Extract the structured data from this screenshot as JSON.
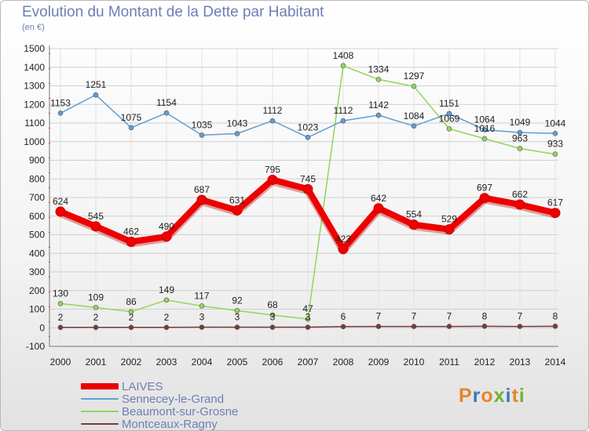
{
  "chart_data": {
    "type": "line",
    "title": "Evolution du Montant de la Dette par Habitant",
    "ylabel": "(en €)",
    "xlabel": "",
    "x": [
      "2000",
      "2001",
      "2002",
      "2003",
      "2004",
      "2005",
      "2006",
      "2007",
      "2008",
      "2009",
      "2010",
      "2011",
      "2012",
      "2013",
      "2014"
    ],
    "ylim": [
      -100,
      1500
    ],
    "yticks": [
      -100,
      0,
      100,
      200,
      300,
      400,
      500,
      600,
      700,
      800,
      900,
      1000,
      1100,
      1200,
      1300,
      1400,
      1500
    ],
    "grid": true,
    "legend_position": "bottom-left",
    "series": [
      {
        "name": "LAIVES",
        "color": "#ee0000",
        "values": [
          624,
          545,
          462,
          490,
          687,
          631,
          795,
          745,
          423,
          642,
          554,
          529,
          697,
          662,
          617
        ]
      },
      {
        "name": "Sennecey-le-Grand",
        "color": "#5e9fd5",
        "values": [
          1153,
          1251,
          1075,
          1154,
          1035,
          1043,
          1112,
          1023,
          1112,
          1142,
          1084,
          1151,
          1064,
          1049,
          1044
        ]
      },
      {
        "name": "Beaumont-sur-Grosne",
        "color": "#8fd65c",
        "values": [
          130,
          109,
          86,
          149,
          117,
          92,
          68,
          47,
          1408,
          1334,
          1297,
          1069,
          1016,
          963,
          933
        ]
      },
      {
        "name": "Montceaux-Ragny",
        "color": "#7a3a3a",
        "values": [
          2,
          2,
          2,
          2,
          3,
          3,
          3,
          3,
          6,
          7,
          7,
          7,
          8,
          7,
          8
        ]
      }
    ]
  }
}
